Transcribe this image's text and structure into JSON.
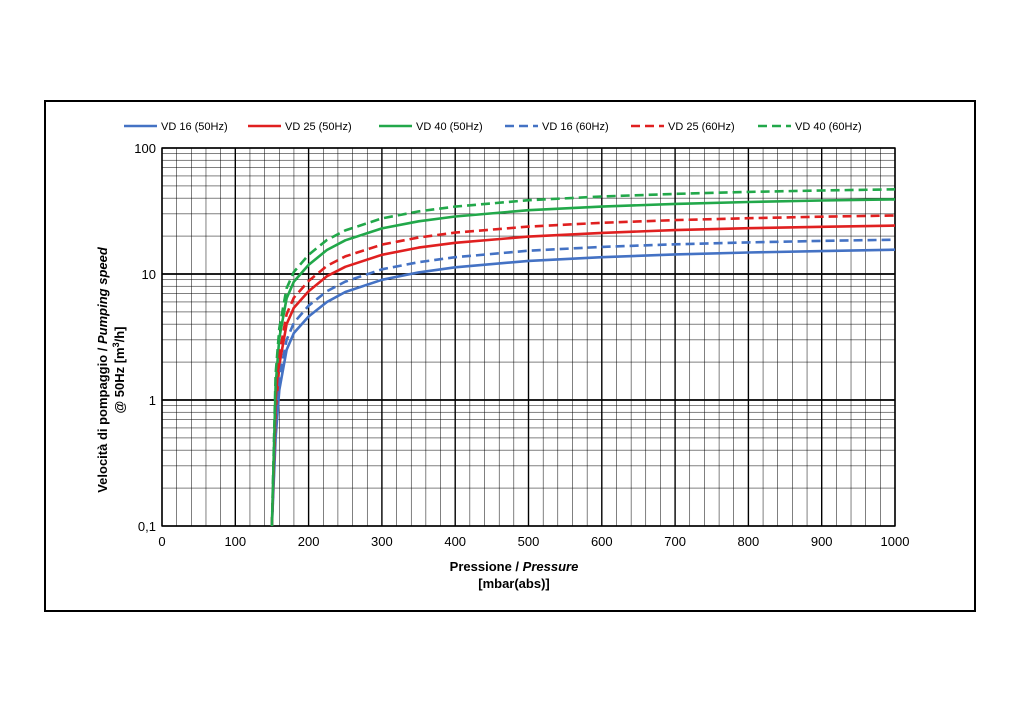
{
  "chart_data": {
    "type": "line",
    "xlabel": "Pressione / Pressure",
    "xlabel_plain": "Pressione / ",
    "xlabel_italic": "Pressure",
    "xlabel_unit": "[mbar(abs)]",
    "ylabel_line1": "Velocità di pompaggio / Pumping speed",
    "ylabel_line1_plain": "Velocità di pompaggio / ",
    "ylabel_line1_italic": "Pumping speed",
    "ylabel_line2_prefix": "@ 50Hz [m",
    "ylabel_line2_sup": "3",
    "ylabel_line2_suffix": "/h]",
    "xlim": [
      0,
      1000
    ],
    "ylim": [
      0.1,
      100
    ],
    "yscale": "log",
    "grid": true,
    "legend_position": "top",
    "x_ticks": [
      "0",
      "100",
      "200",
      "300",
      "400",
      "500",
      "600",
      "700",
      "800",
      "900",
      "1000"
    ],
    "y_ticks": [
      "0,1",
      "1",
      "10",
      "100"
    ],
    "series": [
      {
        "name": "VD 16 (50Hz)",
        "color": "#4472c4",
        "dash": "solid",
        "x": [
          150,
          155,
          160,
          170,
          180,
          200,
          225,
          250,
          300,
          350,
          400,
          500,
          600,
          700,
          800,
          900,
          1000
        ],
        "y": [
          0.1,
          0.5,
          1.2,
          2.5,
          3.4,
          4.6,
          6.0,
          7.2,
          9.0,
          10.3,
          11.3,
          12.7,
          13.6,
          14.3,
          14.8,
          15.2,
          15.6
        ]
      },
      {
        "name": "VD 25 (50Hz)",
        "color": "#e02020",
        "dash": "solid",
        "x": [
          150,
          155,
          160,
          170,
          180,
          200,
          225,
          250,
          300,
          350,
          400,
          500,
          600,
          700,
          800,
          900,
          1000
        ],
        "y": [
          0.1,
          0.8,
          1.9,
          4.0,
          5.4,
          7.3,
          9.6,
          11.4,
          14.2,
          16.2,
          17.7,
          19.8,
          21.2,
          22.3,
          23.1,
          23.7,
          24.2
        ]
      },
      {
        "name": "VD 40 (50Hz)",
        "color": "#22a84a",
        "dash": "solid",
        "x": [
          150,
          155,
          160,
          170,
          180,
          200,
          225,
          250,
          300,
          350,
          400,
          500,
          600,
          700,
          800,
          900,
          1000
        ],
        "y": [
          0.1,
          1.3,
          3.1,
          6.4,
          8.7,
          11.8,
          15.5,
          18.5,
          23.0,
          26.2,
          28.6,
          32.1,
          34.3,
          36.0,
          37.3,
          38.3,
          39.1
        ]
      },
      {
        "name": "VD 16 (60Hz)",
        "color": "#4472c4",
        "dash": "dashed",
        "x": [
          150,
          155,
          160,
          170,
          180,
          200,
          225,
          250,
          300,
          350,
          400,
          500,
          600,
          700,
          800,
          900,
          1000
        ],
        "y": [
          0.1,
          0.6,
          1.5,
          3.0,
          4.1,
          5.6,
          7.3,
          8.7,
          10.9,
          12.4,
          13.6,
          15.3,
          16.4,
          17.2,
          17.8,
          18.3,
          18.7
        ]
      },
      {
        "name": "VD 25 (60Hz)",
        "color": "#e02020",
        "dash": "dashed",
        "x": [
          150,
          155,
          160,
          170,
          180,
          200,
          225,
          250,
          300,
          350,
          400,
          500,
          600,
          700,
          800,
          900,
          1000
        ],
        "y": [
          0.1,
          1.0,
          2.3,
          4.8,
          6.5,
          8.8,
          11.6,
          13.8,
          17.1,
          19.5,
          21.3,
          23.8,
          25.5,
          26.8,
          27.7,
          28.5,
          29.1
        ]
      },
      {
        "name": "VD 40 (60Hz)",
        "color": "#22a84a",
        "dash": "dashed",
        "x": [
          150,
          155,
          160,
          170,
          180,
          200,
          225,
          250,
          300,
          350,
          400,
          500,
          600,
          700,
          800,
          900,
          1000
        ],
        "y": [
          0.1,
          1.6,
          3.7,
          7.7,
          10.4,
          14.2,
          18.6,
          22.2,
          27.6,
          31.4,
          34.3,
          38.5,
          41.2,
          43.2,
          44.8,
          46.0,
          47.0
        ]
      }
    ]
  }
}
